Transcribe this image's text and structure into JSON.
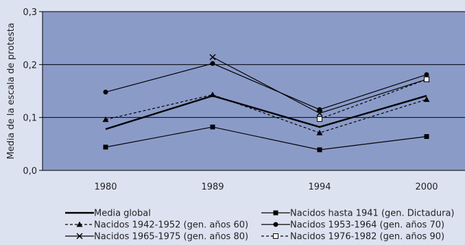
{
  "colors": {
    "background": "#dde2f0",
    "plot_area": "#8a9bc8",
    "gridline": "#000000",
    "series_line": "#000000"
  },
  "chart_data": {
    "type": "line",
    "title": "",
    "xlabel": "",
    "ylabel": "Media de la escala de protesta",
    "categories": [
      "1980",
      "1989",
      "1994",
      "2000"
    ],
    "y_tick_labels": [
      "0,0",
      "0,1",
      "0,2",
      "0,3"
    ],
    "ylim": [
      0,
      0.3
    ],
    "grid": true,
    "legend_position": "bottom",
    "series": [
      {
        "name": "Media global",
        "values": [
          0.078,
          0.141,
          0.082,
          0.141
        ],
        "marker": "none",
        "dashed": false,
        "width": 2.4
      },
      {
        "name": "Nacidos hasta 1941 (gen. Dictadura)",
        "values": [
          0.044,
          0.082,
          0.039,
          0.064
        ],
        "marker": "square",
        "dashed": false,
        "width": 1.2
      },
      {
        "name": "Nacidos 1942-1952 (gen. años 60)",
        "values": [
          0.096,
          0.143,
          0.071,
          0.134
        ],
        "marker": "triangle",
        "dashed": true,
        "width": 1.2
      },
      {
        "name": "Nacidos 1953-1964 (gen. años 70)",
        "values": [
          0.148,
          0.202,
          0.115,
          0.181
        ],
        "marker": "circle",
        "dashed": false,
        "width": 1.2
      },
      {
        "name": "Nacidos 1965-1975 (gen. años 80)",
        "values": [
          null,
          0.214,
          0.108,
          0.172
        ],
        "marker": "x",
        "dashed": false,
        "width": 1.2
      },
      {
        "name": "Nacidos 1976-1982 (gen. años 90)",
        "values": [
          null,
          null,
          0.097,
          0.172
        ],
        "marker": "open-square",
        "dashed": true,
        "width": 1.2
      }
    ]
  }
}
